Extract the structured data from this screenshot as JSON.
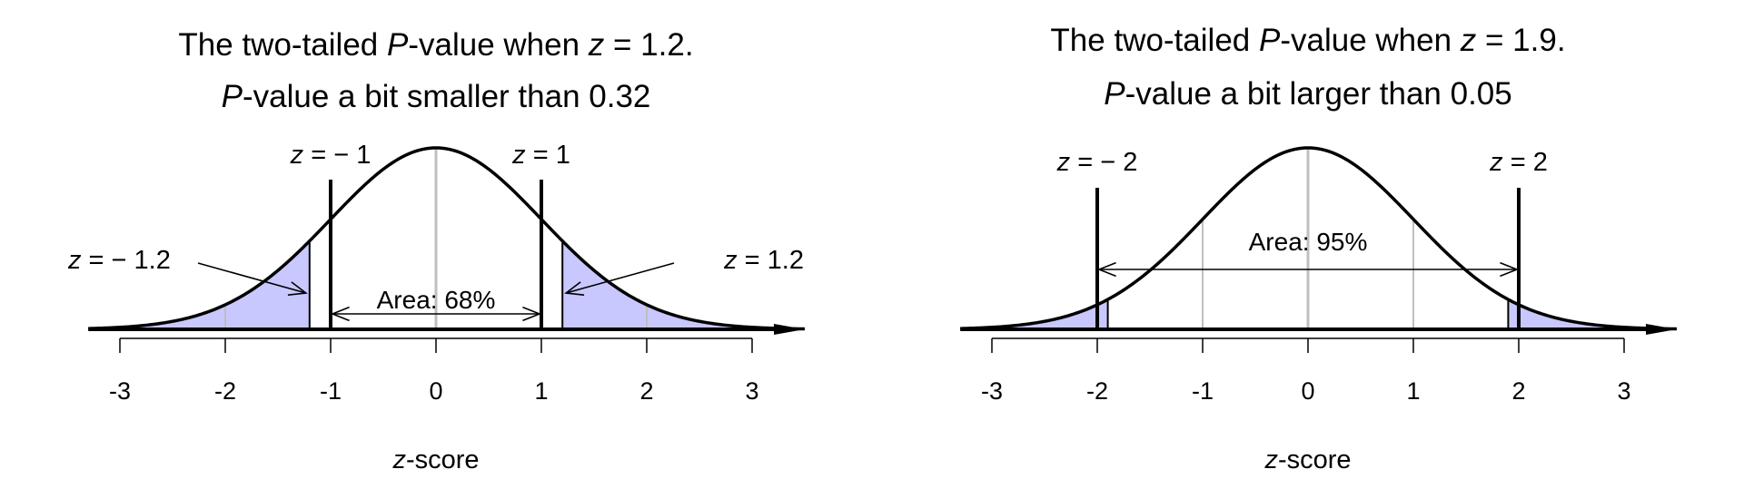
{
  "chart_data": [
    {
      "type": "area",
      "title_parts": [
        "The two-tailed ",
        "P",
        "-value when ",
        "z",
        " = 1.2."
      ],
      "subtitle_parts": [
        "P",
        "-value a bit smaller than 0.32"
      ],
      "xlabel_parts": [
        "z",
        "-score"
      ],
      "xlim": [
        -3.3,
        3.5
      ],
      "ticks": [
        "-3",
        "-2",
        "-1",
        "0",
        "1",
        "2",
        "3"
      ],
      "density": "standard normal",
      "z": 1.2,
      "shaded_tails": true,
      "gridlines": [
        -2,
        -1,
        0,
        1,
        2
      ],
      "reference_lines": [
        {
          "x": -1,
          "label_prefix": "z",
          "label_value": "= − 1"
        },
        {
          "x": 1,
          "label_prefix": "z",
          "label_value": "= 1"
        }
      ],
      "annotations": [
        {
          "prefix": "z",
          "value": "= − 1.2",
          "points_to": -1.2
        },
        {
          "prefix": "z",
          "value": "= 1.2",
          "points_to": 1.2
        }
      ],
      "area_label": "Area: 68%",
      "area_span": [
        -1,
        1
      ],
      "shade_color": "#c8c8ff"
    },
    {
      "type": "area",
      "title_parts": [
        "The two-tailed ",
        "P",
        "-value when ",
        "z",
        " = 1.9."
      ],
      "subtitle_parts": [
        "P",
        "-value a bit larger than 0.05"
      ],
      "xlabel_parts": [
        "z",
        "-score"
      ],
      "xlim": [
        -3.3,
        3.5
      ],
      "ticks": [
        "-3",
        "-2",
        "-1",
        "0",
        "1",
        "2",
        "3"
      ],
      "density": "standard normal",
      "z": 1.9,
      "shaded_tails": true,
      "gridlines": [
        -2,
        -1,
        0,
        1,
        2
      ],
      "reference_lines": [
        {
          "x": -2,
          "label_prefix": "z",
          "label_value": "= − 2"
        },
        {
          "x": 2,
          "label_prefix": "z",
          "label_value": "= 2"
        }
      ],
      "annotations": [],
      "area_label": "Area: 95%",
      "area_span": [
        -2,
        2
      ],
      "shade_color": "#c8c8ff"
    }
  ]
}
